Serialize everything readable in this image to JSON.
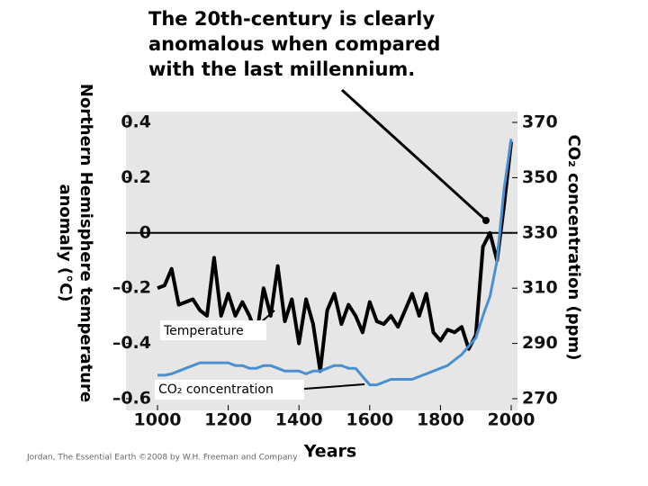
{
  "chart_data": {
    "type": "line",
    "title": [
      "The 20th-century is clearly",
      "anomalous when compared",
      "with the last millennium."
    ],
    "y_label": [
      "Northern Hemisphere temperature",
      "anomaly (°C)"
    ],
    "y2_label": "CO₂ concentration (ppm)",
    "x_label": "Years",
    "credit": "Jordan, The Essential Earth ©2008 by W.H. Freeman and Company",
    "x": [
      1000,
      1020,
      1040,
      1060,
      1080,
      1100,
      1120,
      1140,
      1160,
      1180,
      1200,
      1220,
      1240,
      1260,
      1280,
      1300,
      1320,
      1340,
      1360,
      1380,
      1400,
      1420,
      1440,
      1460,
      1480,
      1500,
      1520,
      1540,
      1560,
      1580,
      1600,
      1620,
      1640,
      1660,
      1680,
      1700,
      1720,
      1740,
      1760,
      1780,
      1800,
      1820,
      1840,
      1860,
      1880,
      1900,
      1920,
      1940,
      1960,
      1980,
      2000
    ],
    "series": [
      {
        "name": "Temperature",
        "color": "#000000",
        "values": [
          -0.2,
          -0.19,
          -0.13,
          -0.26,
          -0.25,
          -0.24,
          -0.28,
          -0.3,
          -0.09,
          -0.3,
          -0.22,
          -0.3,
          -0.25,
          -0.3,
          -0.37,
          -0.2,
          -0.3,
          -0.12,
          -0.32,
          -0.24,
          -0.4,
          -0.24,
          -0.33,
          -0.5,
          -0.28,
          -0.22,
          -0.33,
          -0.26,
          -0.3,
          -0.36,
          -0.25,
          -0.32,
          -0.33,
          -0.3,
          -0.34,
          -0.28,
          -0.22,
          -0.3,
          -0.22,
          -0.36,
          -0.39,
          -0.35,
          -0.36,
          -0.34,
          -0.42,
          -0.37,
          -0.05,
          0.0,
          -0.1,
          0.1,
          0.33
        ]
      },
      {
        "name": "CO₂ concentration",
        "color": "#4a90d0",
        "axis": "y2",
        "values": [
          278.5,
          278.5,
          279,
          280,
          281,
          282,
          283,
          283,
          283,
          283,
          283,
          282,
          282,
          281,
          281,
          282,
          282,
          281,
          280,
          280,
          280,
          279,
          280,
          280,
          281,
          282,
          282,
          281,
          281,
          278,
          275,
          275,
          276,
          277,
          277,
          277,
          277,
          278,
          279,
          280,
          281,
          282,
          284,
          286,
          289,
          292,
          300,
          307,
          320,
          346,
          364
        ]
      }
    ],
    "xlim": [
      1000,
      2000
    ],
    "xticks": [
      1000,
      1200,
      1400,
      1600,
      1800,
      2000
    ],
    "ylim": [
      -0.6,
      0.4
    ],
    "yticks": [
      {
        "value": -0.6,
        "label": "–0.6"
      },
      {
        "value": -0.4,
        "label": "–0.4"
      },
      {
        "value": -0.2,
        "label": "–0.2"
      },
      0,
      0.2,
      0.4
    ],
    "y2lim": [
      270,
      370
    ],
    "y2ticks": [
      270,
      290,
      310,
      330,
      350,
      370
    ]
  }
}
